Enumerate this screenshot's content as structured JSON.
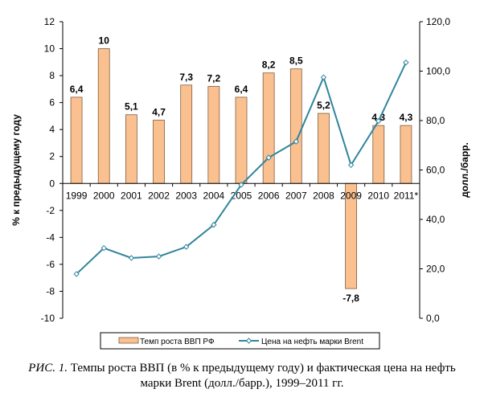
{
  "chart_data": {
    "type": "bar+line",
    "categories": [
      "1999",
      "2000",
      "2001",
      "2002",
      "2003",
      "2004",
      "2005",
      "2006",
      "2007",
      "2008",
      "2009",
      "2010",
      "2011*"
    ],
    "series": [
      {
        "name": "Темп роста ВВП РФ",
        "type": "bar",
        "axis": "left",
        "color": "#FAC090",
        "values": [
          6.4,
          10,
          5.1,
          4.7,
          7.3,
          7.2,
          6.4,
          8.2,
          8.5,
          5.2,
          -7.8,
          4.3,
          4.3
        ],
        "labels": [
          "6,4",
          "10",
          "5,1",
          "4,7",
          "7,3",
          "7,2",
          "6,4",
          "8,2",
          "8,5",
          "5,2",
          "-7,8",
          "4,3",
          "4,3"
        ]
      },
      {
        "name": "Цена на нефть марки Brent",
        "type": "line",
        "axis": "right",
        "color": "#31859C",
        "values": [
          17.9,
          28.4,
          24.4,
          25.0,
          28.9,
          37.8,
          54.0,
          65.0,
          71.5,
          97.5,
          62.0,
          79.8,
          103.5
        ]
      }
    ],
    "ylabel": "% к предыдущему году",
    "y2label": "долл./барр.",
    "ylim": [
      -10,
      12
    ],
    "y2lim": [
      0,
      120
    ],
    "yticks": [
      "-10",
      "-8",
      "-6",
      "-4",
      "-2",
      "0",
      "2",
      "4",
      "6",
      "8",
      "10",
      "12"
    ],
    "y2ticks": [
      "0,0",
      "20,0",
      "40,0",
      "60,0",
      "80,0",
      "100,0",
      "120,0"
    ],
    "grid": false,
    "legend": "bottom"
  },
  "caption": {
    "prefix": "РИС. 1.",
    "text": " Темпы роста ВВП (в % к предыдущему году) и фактическая цена на нефть",
    "line2": "марки Brent (долл./барр.), 1999–2011 гг."
  }
}
